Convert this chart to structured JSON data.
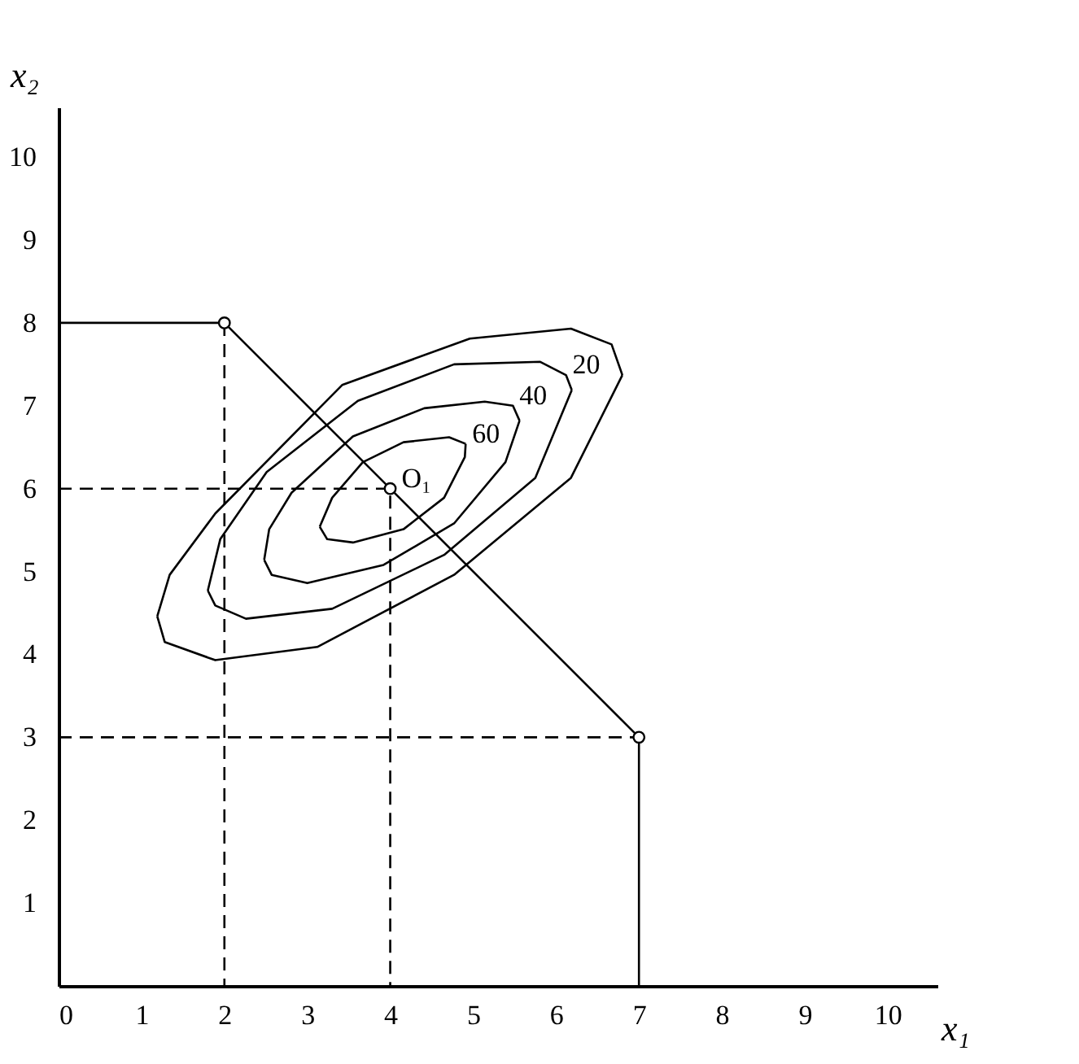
{
  "chart_data": {
    "type": "line",
    "xlabel": "x₁",
    "ylabel": "x₂",
    "xlim": [
      0,
      10.6
    ],
    "ylim": [
      0,
      10.6
    ],
    "xticks": [
      0,
      1,
      2,
      3,
      4,
      5,
      6,
      7,
      8,
      9,
      10
    ],
    "yticks": [
      1,
      2,
      3,
      4,
      5,
      6,
      7,
      8,
      9,
      10
    ],
    "grid": false,
    "series": [
      {
        "color": "#000000",
        "line_style": "solid",
        "x": [
          0,
          2,
          4,
          7,
          7
        ],
        "values": [
          8,
          8,
          6,
          3,
          0
        ]
      },
      {
        "color": "#000000",
        "line_style": "dashed",
        "x": [
          0,
          4,
          4
        ],
        "values": [
          6,
          6,
          0
        ]
      },
      {
        "color": "#000000",
        "line_style": "dashed",
        "x": [
          2,
          2
        ],
        "values": [
          8,
          0
        ]
      },
      {
        "color": "#000000",
        "line_style": "dashed",
        "x": [
          0,
          7
        ],
        "values": [
          3,
          3
        ]
      },
      {
        "color": "#000000",
        "line_style": "solid",
        "x": [
          1.19,
          1.28,
          1.89,
          3.12,
          4.77,
          6.18,
          6.8
        ],
        "values": [
          4.46,
          4.15,
          3.93,
          4.09,
          4.96,
          6.13,
          7.37
        ]
      },
      {
        "color": "#000000",
        "line_style": "solid",
        "x": [
          1.19,
          1.34,
          1.89,
          3.42,
          4.96,
          6.18,
          6.67,
          6.8
        ],
        "values": [
          4.46,
          4.96,
          5.7,
          7.25,
          7.81,
          7.93,
          7.74,
          7.37
        ]
      },
      {
        "color": "#000000",
        "line_style": "solid",
        "x": [
          1.8,
          1.89,
          2.26,
          3.3,
          4.65,
          5.75,
          6.19
        ],
        "values": [
          4.77,
          4.59,
          4.43,
          4.55,
          5.2,
          6.13,
          7.19
        ]
      },
      {
        "name": "20",
        "color": "#000000",
        "line_style": "solid",
        "x": [
          1.8,
          1.95,
          2.51,
          3.61,
          4.77,
          5.81,
          6.12,
          6.19
        ],
        "values": [
          4.77,
          5.39,
          6.2,
          7.06,
          7.5,
          7.53,
          7.37,
          7.19
        ]
      },
      {
        "color": "#000000",
        "line_style": "solid",
        "x": [
          2.48,
          2.57,
          3.0,
          3.92,
          4.77,
          5.39,
          5.56
        ],
        "values": [
          5.14,
          4.96,
          4.86,
          5.08,
          5.58,
          6.32,
          6.82
        ]
      },
      {
        "name": "40",
        "color": "#000000",
        "line_style": "solid",
        "x": [
          2.48,
          2.54,
          2.81,
          3.55,
          4.41,
          5.14,
          5.48,
          5.56
        ],
        "values": [
          5.14,
          5.51,
          5.95,
          6.63,
          6.97,
          7.05,
          7.0,
          6.82
        ]
      },
      {
        "color": "#000000",
        "line_style": "solid",
        "x": [
          3.15,
          3.24,
          3.55,
          4.16,
          4.65,
          4.9,
          4.91
        ],
        "values": [
          5.54,
          5.39,
          5.35,
          5.51,
          5.89,
          6.38,
          6.54
        ]
      },
      {
        "name": "60",
        "color": "#000000",
        "line_style": "solid",
        "x": [
          3.15,
          3.3,
          3.67,
          4.16,
          4.71,
          4.91
        ],
        "values": [
          5.54,
          5.89,
          6.32,
          6.56,
          6.62,
          6.54
        ]
      },
      {
        "type": "scatter",
        "color": "#000000",
        "marker": "circle",
        "x": [
          2,
          4,
          7
        ],
        "values": [
          8,
          6,
          3
        ],
        "value_labels": [
          null,
          "O₁",
          null
        ]
      }
    ]
  }
}
